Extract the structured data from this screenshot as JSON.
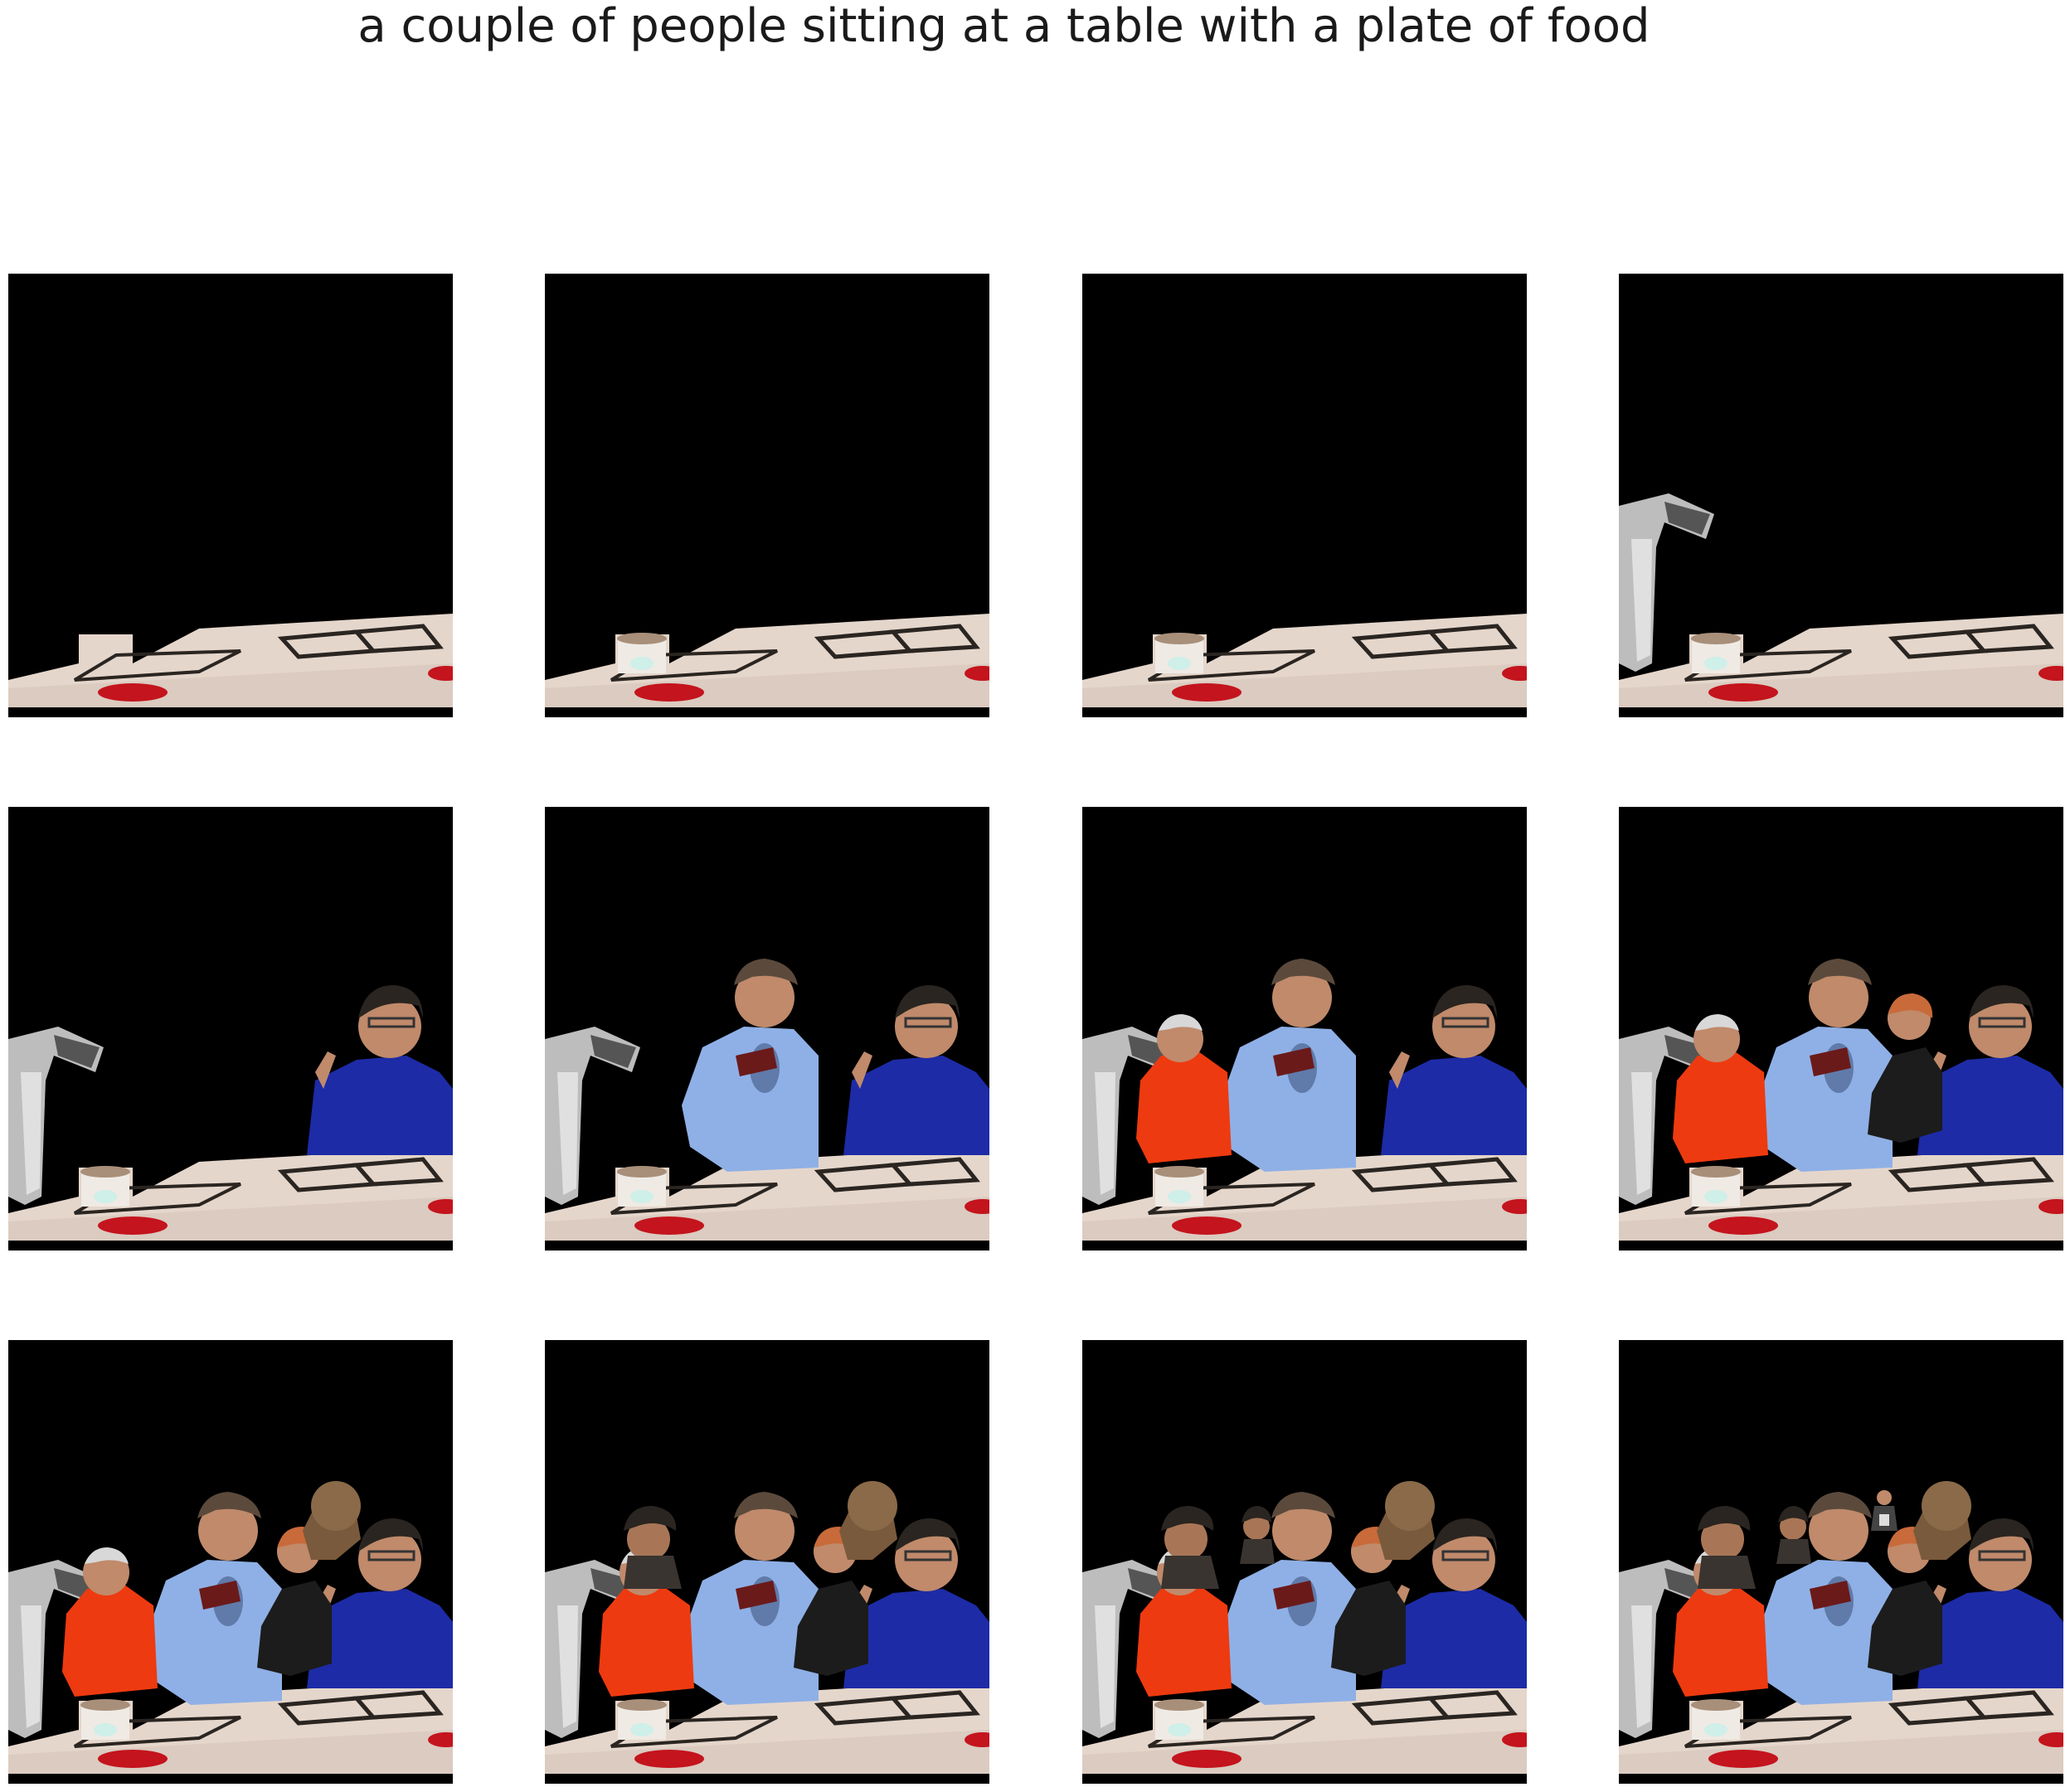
{
  "caption": "a couple of people sitting at a table with a plate of food",
  "colors": {
    "background": "#000000",
    "table": "#e5d6cb",
    "table_shadow": "#c9b8ad",
    "menu_line": "#2a2521",
    "red_item": "#c4141d",
    "shirt_blue_light": "#8fb0e6",
    "shirt_blue_dark": "#1d2ba6",
    "shirt_red": "#ee3a10",
    "shirt_black": "#1c1c1c",
    "skin": "#c08a6b",
    "skin_dark": "#7a5a3c",
    "hair": "#2a2520",
    "arm_gray": "#bdbdbd"
  },
  "frames": [
    {
      "step": 1,
      "layers": [
        "table"
      ]
    },
    {
      "step": 2,
      "layers": [
        "table",
        "cup"
      ]
    },
    {
      "step": 3,
      "layers": [
        "table",
        "cup"
      ]
    },
    {
      "step": 4,
      "layers": [
        "table",
        "cup",
        "arm"
      ]
    },
    {
      "step": 5,
      "layers": [
        "table",
        "cup",
        "arm",
        "person_blue_right"
      ]
    },
    {
      "step": 6,
      "layers": [
        "table",
        "cup",
        "arm",
        "person_blue_right",
        "person_lightblue"
      ]
    },
    {
      "step": 7,
      "layers": [
        "table",
        "cup",
        "arm",
        "person_blue_right",
        "person_lightblue",
        "person_red"
      ]
    },
    {
      "step": 8,
      "layers": [
        "table",
        "cup",
        "arm",
        "person_blue_right",
        "person_lightblue",
        "person_red",
        "person_woman"
      ]
    },
    {
      "step": 9,
      "layers": [
        "table",
        "cup",
        "arm",
        "person_blue_right",
        "person_lightblue",
        "person_red",
        "person_woman",
        "person_bald"
      ]
    },
    {
      "step": 10,
      "layers": [
        "table",
        "cup",
        "arm",
        "person_blue_right",
        "person_lightblue",
        "person_red",
        "person_woman",
        "person_bald",
        "person_darkhair"
      ]
    },
    {
      "step": 11,
      "layers": [
        "table",
        "cup",
        "arm",
        "person_blue_right",
        "person_lightblue",
        "person_red",
        "person_woman",
        "person_bald",
        "person_darkhair",
        "person_small"
      ]
    },
    {
      "step": 12,
      "layers": [
        "table",
        "cup",
        "arm",
        "person_blue_right",
        "person_lightblue",
        "person_red",
        "person_woman",
        "person_bald",
        "person_darkhair",
        "person_small",
        "person_tiny"
      ]
    }
  ]
}
